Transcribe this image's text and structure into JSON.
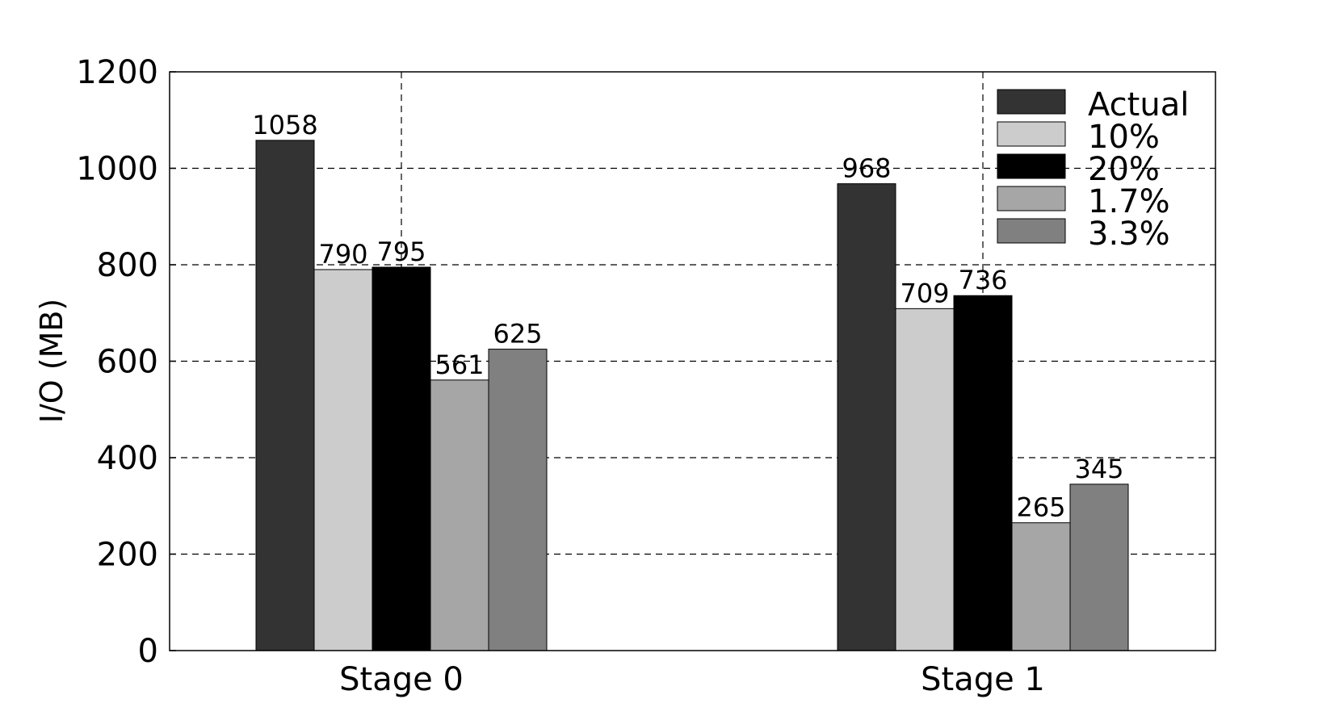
{
  "chart_data": {
    "type": "bar",
    "categories": [
      "Stage 0",
      "Stage 1"
    ],
    "series": [
      {
        "name": "Actual",
        "color": "#333333",
        "values": [
          1058,
          968
        ]
      },
      {
        "name": "10%",
        "color": "#cccccc",
        "values": [
          790,
          709
        ]
      },
      {
        "name": "20%",
        "color": "#000000",
        "values": [
          795,
          736
        ]
      },
      {
        "name": "1.7%",
        "color": "#a6a6a6",
        "values": [
          561,
          265
        ]
      },
      {
        "name": "3.3%",
        "color": "#808080",
        "values": [
          625,
          345
        ]
      }
    ],
    "title": "",
    "xlabel": "",
    "ylabel": "I/O (MB)",
    "ylim": [
      0,
      1200
    ],
    "yticks": [
      0,
      200,
      400,
      600,
      800,
      1000,
      1200
    ],
    "grid": true,
    "legend_position": "top-right",
    "data_labels": true
  }
}
